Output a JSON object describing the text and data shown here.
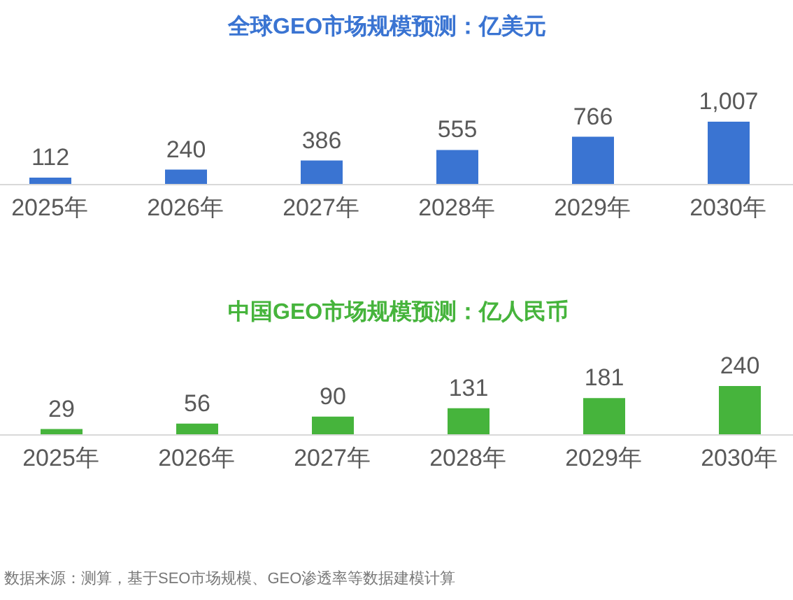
{
  "chart_data": [
    {
      "type": "bar",
      "title": "全球GEO市场规模预测：亿美元",
      "categories": [
        "2025年",
        "2026年",
        "2027年",
        "2028年",
        "2029年",
        "2030年"
      ],
      "values": [
        112,
        240,
        386,
        555,
        766,
        1007
      ],
      "value_labels": [
        "112",
        "240",
        "386",
        "555",
        "766",
        "1,007"
      ],
      "color": "#3a74d2",
      "tick_labels": "x"
    },
    {
      "type": "bar",
      "title": "中国GEO市场规模预测：亿人民币",
      "categories": [
        "2025年",
        "2026年",
        "2027年",
        "2028年",
        "2029年",
        "2030年"
      ],
      "values": [
        29,
        56,
        90,
        131,
        181,
        240
      ],
      "value_labels": [
        "29",
        "56",
        "90",
        "131",
        "181",
        "240"
      ],
      "color": "#46b43c",
      "tick_labels": "x",
      "annotations": [
        "数据来源：测算，基于SEO市场规模、GEO渗透率等数据建模计算"
      ]
    }
  ]
}
